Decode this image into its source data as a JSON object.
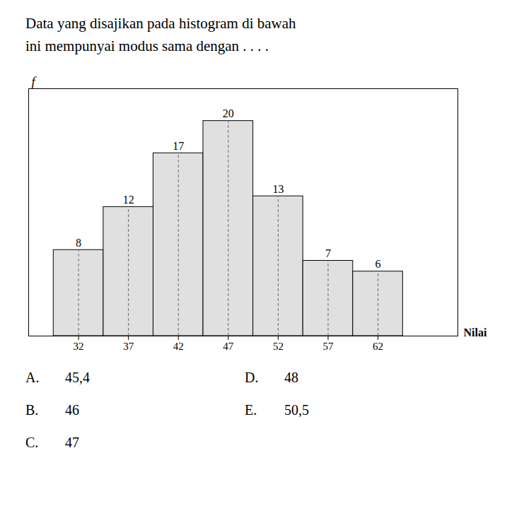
{
  "chart_data": {
    "type": "histogram",
    "title": "Data yang disajikan pada histogram di bawah",
    "subtitle": "ini mempunyai modus sama dengan . . . .",
    "bins": [
      29.5,
      34.5,
      39.5,
      44.5,
      49.5,
      54.5,
      59.5,
      64.5
    ],
    "values": [
      8,
      12,
      17,
      20,
      13,
      7,
      6
    ],
    "color": "#e0e0e0",
    "xlabel": "Nilai",
    "ylabel": "f",
    "xlim": [
      27,
      70
    ],
    "ylim": [
      0,
      23
    ],
    "xticks": [
      32,
      37,
      42,
      47,
      52,
      57,
      62
    ],
    "tick_labels": "x",
    "data_labels": true,
    "annotations": [
      [
        "A.",
        "45,4"
      ],
      [
        "B.",
        "46"
      ],
      [
        "C.",
        "47"
      ],
      [
        "D.",
        "48"
      ],
      [
        "E.",
        "50,5"
      ]
    ]
  }
}
